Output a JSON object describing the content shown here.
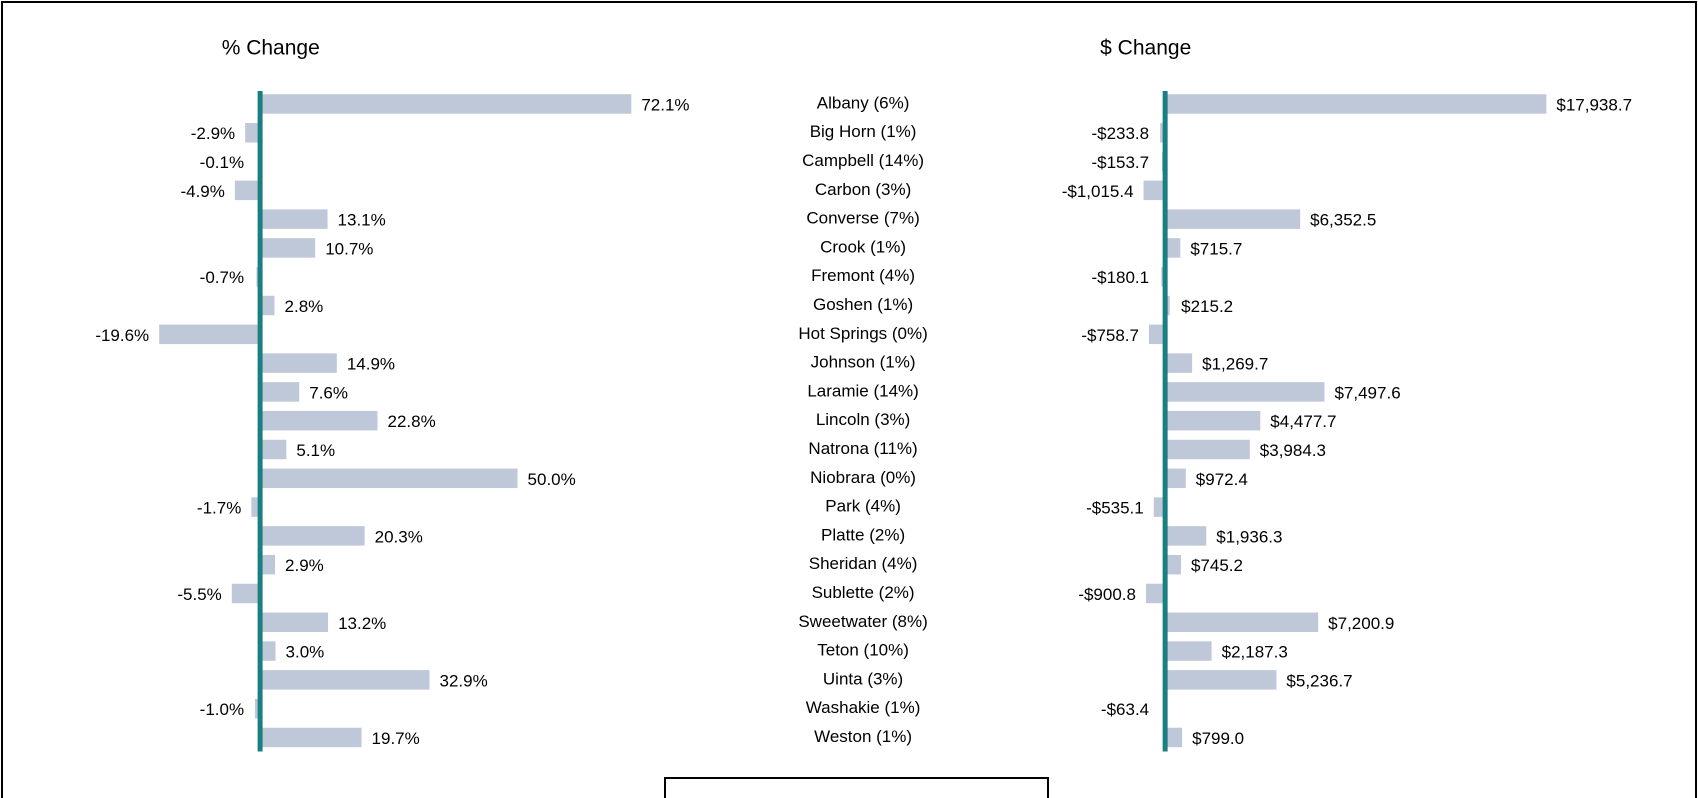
{
  "chart_data": {
    "type": "bar",
    "orientation": "horizontal",
    "categories": [
      "Albany (6%)",
      "Big Horn (1%)",
      "Campbell (14%)",
      "Carbon (3%)",
      "Converse (7%)",
      "Crook (1%)",
      "Fremont (4%)",
      "Goshen (1%)",
      "Hot Springs (0%)",
      "Johnson (1%)",
      "Laramie (14%)",
      "Lincoln (3%)",
      "Natrona (11%)",
      "Niobrara (0%)",
      "Park (4%)",
      "Platte (2%)",
      "Sheridan (4%)",
      "Sublette (2%)",
      "Sweetwater (8%)",
      "Teton (10%)",
      "Uinta (3%)",
      "Washakie (1%)",
      "Weston (1%)"
    ],
    "color": "#bfc8d8",
    "axis_color": "#1a7f80",
    "series": [
      {
        "name": "% Change",
        "values": [
          72.1,
          -2.9,
          -0.1,
          -4.9,
          13.1,
          10.7,
          -0.7,
          2.8,
          -19.6,
          14.9,
          7.6,
          22.8,
          5.1,
          50.0,
          -1.7,
          20.3,
          2.9,
          -5.5,
          13.2,
          3.0,
          32.9,
          -1.0,
          19.7
        ],
        "value_labels": [
          "72.1%",
          "-2.9%",
          "-0.1%",
          "-4.9%",
          "13.1%",
          "10.7%",
          "-0.7%",
          "2.8%",
          "-19.6%",
          "14.9%",
          "7.6%",
          "22.8%",
          "5.1%",
          "50.0%",
          "-1.7%",
          "20.3%",
          "2.9%",
          "-5.5%",
          "13.2%",
          "3.0%",
          "32.9%",
          "-1.0%",
          "19.7%"
        ]
      },
      {
        "name": "$ Change",
        "values": [
          17938.7,
          -233.8,
          -153.7,
          -1015.4,
          6352.5,
          715.7,
          -180.1,
          215.2,
          -758.7,
          1269.7,
          7497.6,
          4477.7,
          3984.3,
          972.4,
          -535.1,
          1936.3,
          745.2,
          -900.8,
          7200.9,
          2187.3,
          5236.7,
          -63.4,
          799.0
        ],
        "value_labels": [
          "$17,938.7",
          "-$233.8",
          "-$153.7",
          "-$1,015.4",
          "$6,352.5",
          "$715.7",
          "-$180.1",
          "$215.2",
          "-$758.7",
          "$1,269.7",
          "$7,497.6",
          "$4,477.7",
          "$3,984.3",
          "$972.4",
          "-$535.1",
          "$1,936.3",
          "$745.2",
          "-$900.8",
          "$7,200.9",
          "$2,187.3",
          "$5,236.7",
          "-$63.4",
          "$799.0"
        ]
      }
    ]
  }
}
